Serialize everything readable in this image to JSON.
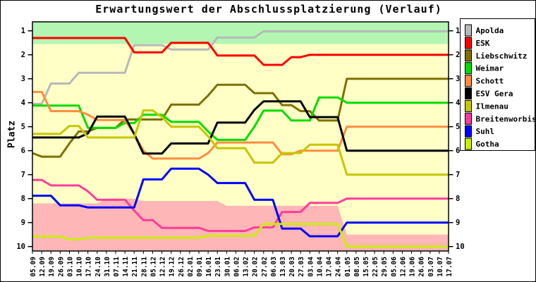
{
  "chart_data": {
    "type": "line",
    "title": "Erwartungswert der Abschlussplatzierung (Verlauf)",
    "ylabel": "Platz",
    "y_axis_inverted": true,
    "ylim": [
      0.6,
      10.2
    ],
    "y_ticks": [
      1,
      2,
      3,
      4,
      5,
      6,
      7,
      8,
      9,
      10
    ],
    "grid": false,
    "legend_position": "right",
    "x_tick_labels": [
      "05.09",
      "12.09",
      "19.09",
      "26.09",
      "03.10",
      "10.10",
      "17.10",
      "24.10",
      "31.10",
      "07.11",
      "14.11",
      "21.11",
      "28.11",
      "05.12",
      "12.12",
      "19.12",
      "26.12",
      "02.01",
      "09.01",
      "16.01",
      "23.01",
      "30.01",
      "06.02",
      "13.02",
      "20.02",
      "27.02",
      "06.03",
      "13.03",
      "20.03",
      "27.03",
      "03.04",
      "10.04",
      "17.04",
      "24.04",
      "01.05",
      "08.05",
      "15.05",
      "22.05",
      "29.05",
      "05.06",
      "12.06",
      "19.06",
      "26.06",
      "03.07",
      "10.07",
      "17.07"
    ],
    "background_color": "#ffffc6",
    "promotion_band": {
      "color": "#b2f6b2",
      "from_rank": 0.6,
      "to_rank": 1.55
    },
    "relegation_band": {
      "color": "#ffb6b6",
      "bottom_rank": 10.2,
      "top_values": [
        8.2,
        8.2,
        8.2,
        8.2,
        8.2,
        8.2,
        8.2,
        8.2,
        8.0,
        8.0,
        8.0,
        8.0,
        8.1,
        8.1,
        8.1,
        8.1,
        8.1,
        8.1,
        8.1,
        8.1,
        8.1,
        8.3,
        8.3,
        8.3,
        8.3,
        8.3,
        8.3,
        8.3,
        8.3,
        8.3,
        8.3,
        8.3,
        8.3,
        8.3,
        9.5,
        9.5,
        9.5,
        9.5,
        9.5,
        9.5,
        9.5,
        9.5,
        9.5,
        9.5,
        9.5,
        9.5
      ]
    },
    "series": [
      {
        "name": "Apolda",
        "color": "#b8b8b8",
        "values": [
          4.05,
          4.05,
          3.2,
          3.2,
          3.2,
          2.75,
          2.75,
          2.75,
          2.75,
          2.75,
          2.75,
          1.6,
          1.6,
          1.6,
          1.6,
          1.78,
          1.78,
          1.78,
          1.78,
          1.78,
          1.28,
          1.28,
          1.28,
          1.28,
          1.28,
          1.02,
          1.02,
          1.02,
          1.02,
          1.02,
          1.02,
          1.02,
          1.02,
          1.02,
          1.02,
          1.02,
          1.02,
          1.02,
          1.02,
          1.02,
          1.02,
          1.02,
          1.02,
          1.02,
          1.02,
          1.02
        ]
      },
      {
        "name": "ESK",
        "color": "#ff0000",
        "values": [
          1.3,
          1.3,
          1.3,
          1.3,
          1.3,
          1.3,
          1.3,
          1.3,
          1.3,
          1.3,
          1.3,
          1.9,
          1.9,
          1.9,
          1.9,
          1.5,
          1.5,
          1.5,
          1.5,
          1.5,
          2.03,
          2.03,
          2.03,
          2.03,
          2.03,
          2.42,
          2.42,
          2.42,
          2.1,
          2.1,
          2.0,
          2.0,
          2.0,
          2.0,
          2.0,
          2.0,
          2.0,
          2.0,
          2.0,
          2.0,
          2.0,
          2.0,
          2.0,
          2.0,
          2.0,
          2.0
        ]
      },
      {
        "name": "Liebschwitz",
        "color": "#7e7000",
        "values": [
          6.1,
          6.25,
          6.25,
          6.25,
          5.7,
          5.2,
          5.2,
          5.05,
          5.05,
          5.05,
          4.7,
          4.7,
          4.7,
          4.7,
          4.7,
          4.08,
          4.08,
          4.08,
          4.08,
          3.7,
          3.25,
          3.25,
          3.25,
          3.25,
          3.6,
          3.6,
          3.6,
          4.1,
          4.1,
          4.35,
          4.35,
          4.74,
          4.74,
          4.74,
          3.0,
          3.0,
          3.0,
          3.0,
          3.0,
          3.0,
          3.0,
          3.0,
          3.0,
          3.0,
          3.0,
          3.0
        ]
      },
      {
        "name": "Weimar",
        "color": "#00dd00",
        "values": [
          4.12,
          4.12,
          4.12,
          4.12,
          4.12,
          4.12,
          5.05,
          5.05,
          5.05,
          5.05,
          4.85,
          4.85,
          4.5,
          4.5,
          4.5,
          4.8,
          4.8,
          4.8,
          4.8,
          5.2,
          5.55,
          5.55,
          5.55,
          5.55,
          5.0,
          4.33,
          4.33,
          4.33,
          4.74,
          4.74,
          4.74,
          3.78,
          3.78,
          3.78,
          4.0,
          4.0,
          4.0,
          4.0,
          4.0,
          4.0,
          4.0,
          4.0,
          4.0,
          4.0,
          4.0,
          4.0
        ]
      },
      {
        "name": "Schott",
        "color": "#ff8c40",
        "values": [
          3.55,
          3.55,
          4.35,
          4.35,
          4.35,
          4.35,
          4.5,
          4.72,
          4.72,
          4.72,
          4.72,
          5.3,
          6.0,
          6.33,
          6.33,
          6.33,
          6.33,
          6.33,
          6.33,
          6.1,
          5.66,
          5.66,
          5.66,
          5.66,
          5.66,
          5.66,
          5.66,
          6.15,
          6.15,
          6.0,
          6.0,
          6.0,
          6.0,
          6.0,
          5.0,
          5.0,
          5.0,
          5.0,
          5.0,
          5.0,
          5.0,
          5.0,
          5.0,
          5.0,
          5.0,
          5.0
        ]
      },
      {
        "name": "ESV Gera",
        "color": "#000000",
        "values": [
          5.45,
          5.45,
          5.45,
          5.45,
          5.45,
          5.45,
          5.28,
          4.58,
          4.58,
          4.58,
          4.58,
          5.3,
          6.12,
          6.12,
          6.12,
          5.7,
          5.7,
          5.7,
          5.7,
          5.7,
          4.83,
          4.83,
          4.83,
          4.83,
          4.3,
          3.94,
          3.94,
          3.94,
          3.94,
          3.94,
          4.6,
          4.6,
          4.6,
          4.6,
          6.0,
          6.0,
          6.0,
          6.0,
          6.0,
          6.0,
          6.0,
          6.0,
          6.0,
          6.0,
          6.0,
          6.0
        ]
      },
      {
        "name": "Ilmenau",
        "color": "#c6c600",
        "values": [
          5.3,
          5.3,
          5.3,
          5.3,
          4.97,
          4.97,
          5.45,
          5.45,
          5.45,
          5.45,
          5.45,
          5.45,
          4.32,
          4.32,
          4.6,
          5.0,
          5.0,
          5.0,
          5.0,
          5.4,
          5.9,
          5.9,
          5.9,
          5.9,
          6.5,
          6.5,
          6.5,
          6.1,
          6.1,
          6.1,
          5.75,
          5.75,
          5.75,
          5.75,
          7.0,
          7.0,
          7.0,
          7.0,
          7.0,
          7.0,
          7.0,
          7.0,
          7.0,
          7.0,
          7.0,
          7.0
        ]
      },
      {
        "name": "Breitenworbis",
        "color": "#ff3c9c",
        "values": [
          7.22,
          7.22,
          7.45,
          7.45,
          7.45,
          7.45,
          7.7,
          8.05,
          8.05,
          8.05,
          8.05,
          8.5,
          8.9,
          8.9,
          9.22,
          9.22,
          9.22,
          9.22,
          9.22,
          9.35,
          9.35,
          9.35,
          9.35,
          9.35,
          9.2,
          9.2,
          9.2,
          8.56,
          8.56,
          8.56,
          8.18,
          8.18,
          8.18,
          8.18,
          8.0,
          8.0,
          8.0,
          8.0,
          8.0,
          8.0,
          8.0,
          8.0,
          8.0,
          8.0,
          8.0,
          8.0
        ]
      },
      {
        "name": "Suhl",
        "color": "#0000ff",
        "values": [
          7.88,
          7.88,
          7.88,
          8.28,
          8.28,
          8.28,
          8.37,
          8.37,
          8.37,
          8.37,
          8.37,
          8.37,
          7.2,
          7.2,
          7.2,
          6.75,
          6.75,
          6.75,
          6.75,
          7.0,
          7.35,
          7.35,
          7.35,
          7.35,
          8.05,
          8.05,
          8.05,
          9.25,
          9.25,
          9.25,
          9.57,
          9.57,
          9.57,
          9.57,
          9.0,
          9.0,
          9.0,
          9.0,
          9.0,
          9.0,
          9.0,
          9.0,
          9.0,
          9.0,
          9.0,
          9.0
        ]
      },
      {
        "name": "Gotha",
        "color": "#c8f000",
        "values": [
          9.58,
          9.58,
          9.58,
          9.58,
          9.7,
          9.7,
          9.63,
          9.63,
          9.63,
          9.63,
          9.63,
          9.63,
          9.63,
          9.63,
          9.63,
          9.63,
          9.63,
          9.63,
          9.63,
          9.55,
          9.55,
          9.55,
          9.55,
          9.55,
          9.55,
          9.06,
          9.06,
          9.06,
          9.06,
          9.06,
          9.06,
          9.06,
          9.06,
          9.06,
          10.0,
          10.0,
          10.0,
          10.0,
          10.0,
          10.0,
          10.0,
          10.0,
          10.0,
          10.0,
          10.0,
          10.0
        ]
      }
    ]
  }
}
